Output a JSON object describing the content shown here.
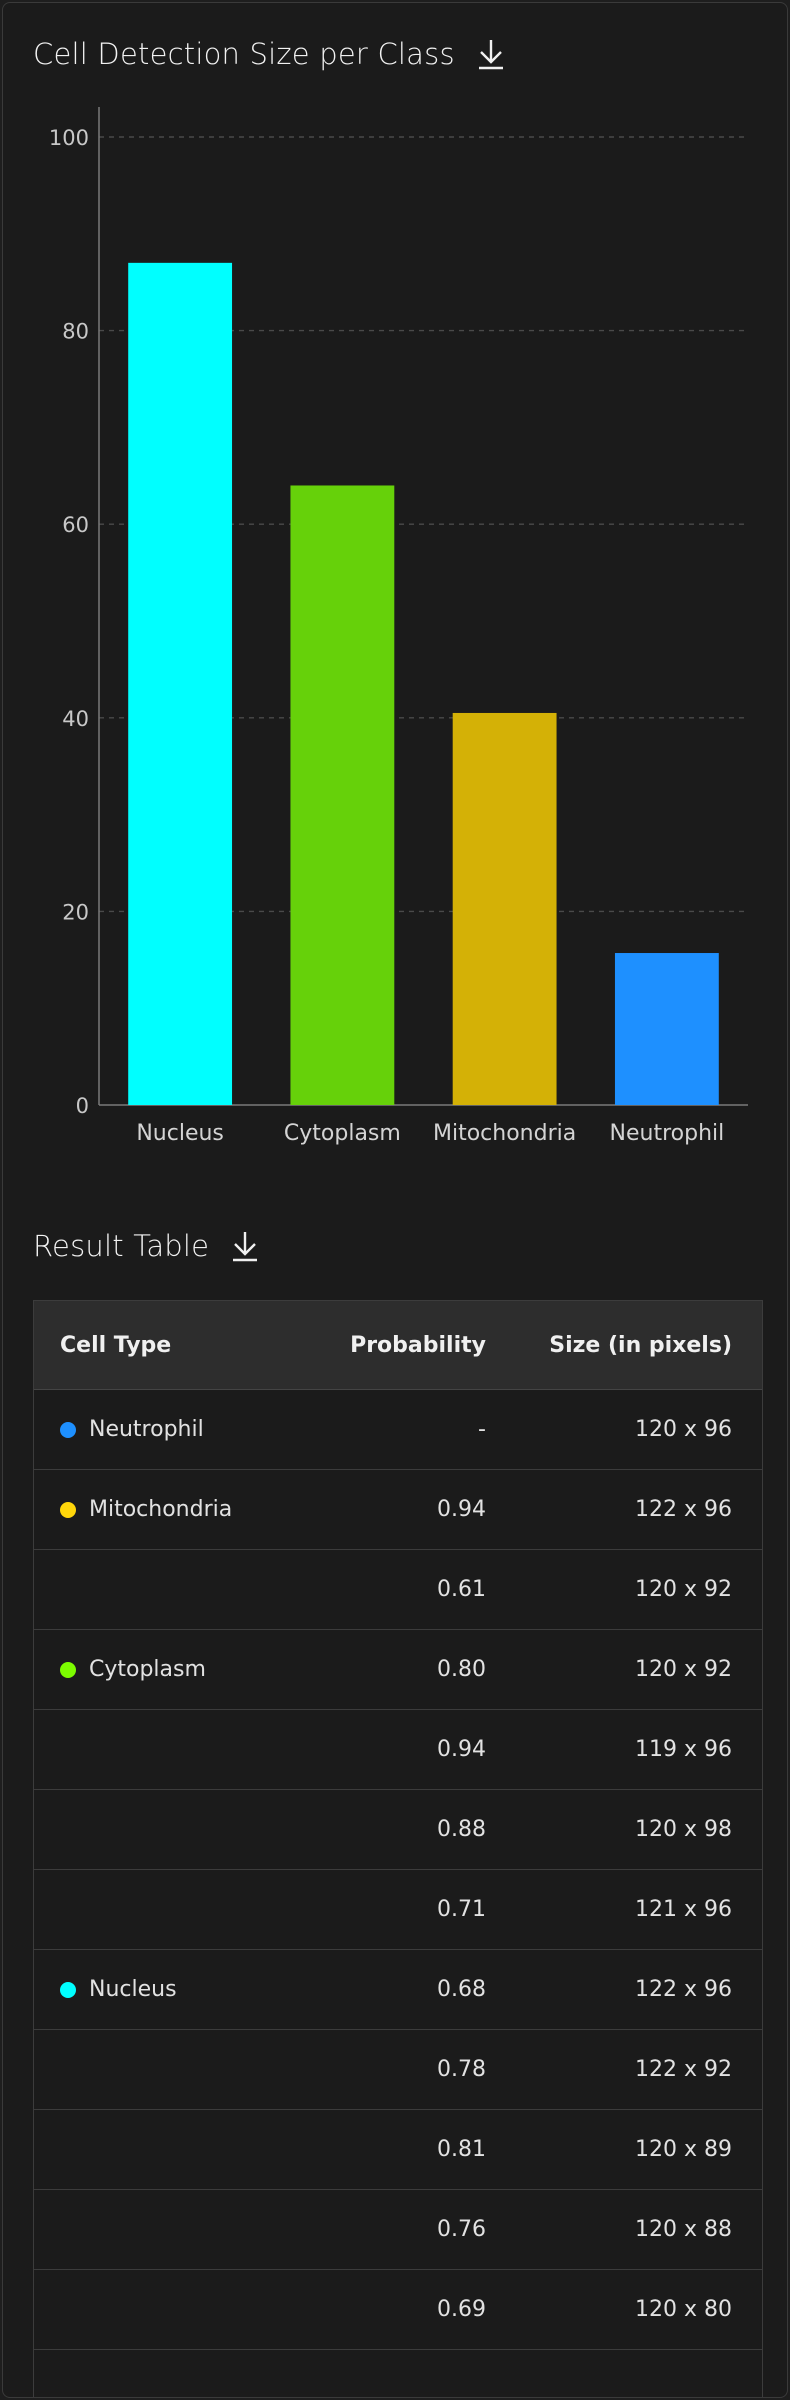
{
  "chart_section": {
    "title": "Cell Detection Size per Class",
    "download_icon": "download-icon"
  },
  "chart_data": {
    "type": "bar",
    "title": "Cell Detection Size per Class",
    "categories": [
      "Nucleus",
      "Cytoplasm",
      "Mitochondria",
      "Neutrophil"
    ],
    "values": [
      87,
      64,
      40.5,
      15.7
    ],
    "colors": [
      "#00ffff",
      "#66d10a",
      "#d4b106",
      "#1e90ff"
    ],
    "xlabel": "",
    "ylabel": "",
    "ylim": [
      0,
      100
    ],
    "yticks": [
      0,
      20,
      40,
      60,
      80,
      100
    ],
    "grid": "horizontal dashed",
    "legend": "none"
  },
  "table_section": {
    "title": "Result Table",
    "download_icon": "download-icon",
    "columns": [
      "Cell Type",
      "Probability",
      "Size (in pixels)"
    ],
    "rows": [
      {
        "type": "Neutrophil",
        "color": "#1e90ff",
        "probability": "-",
        "size": "120 x 96"
      },
      {
        "type": "Mitochondria",
        "color": "#ffd60a",
        "probability": "0.94",
        "size": "122 x 96"
      },
      {
        "type": "",
        "color": "",
        "probability": "0.61",
        "size": "120 x 92"
      },
      {
        "type": "Cytoplasm",
        "color": "#7cfc00",
        "probability": "0.80",
        "size": "120 x 92"
      },
      {
        "type": "",
        "color": "",
        "probability": "0.94",
        "size": "119 x 96"
      },
      {
        "type": "",
        "color": "",
        "probability": "0.88",
        "size": "120 x 98"
      },
      {
        "type": "",
        "color": "",
        "probability": "0.71",
        "size": "121 x 96"
      },
      {
        "type": "Nucleus",
        "color": "#00ffff",
        "probability": "0.68",
        "size": "122 x 96"
      },
      {
        "type": "",
        "color": "",
        "probability": "0.78",
        "size": "122 x 92"
      },
      {
        "type": "",
        "color": "",
        "probability": "0.81",
        "size": "120 x 89"
      },
      {
        "type": "",
        "color": "",
        "probability": "0.76",
        "size": "120 x 88"
      },
      {
        "type": "",
        "color": "",
        "probability": "0.69",
        "size": "120 x 80"
      },
      {
        "type": "",
        "color": "",
        "probability": "",
        "size": ""
      }
    ]
  }
}
